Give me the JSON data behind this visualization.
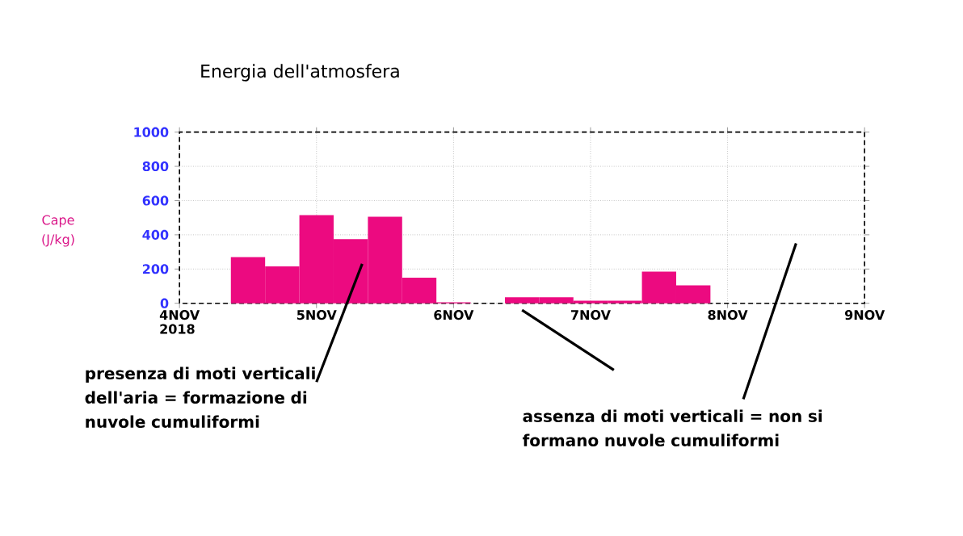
{
  "chart_data": {
    "type": "histogram",
    "title": "Energia dell'atmosfera",
    "ylabel": "Cape (J/kg)",
    "bins": [
      "2018-11-04T09:00",
      "2018-11-04T15:00",
      "2018-11-04T21:00",
      "2018-11-05T03:00",
      "2018-11-05T09:00",
      "2018-11-05T15:00",
      "2018-11-05T21:00",
      "2018-11-06T03:00",
      "2018-11-06T09:00",
      "2018-11-06T15:00",
      "2018-11-06T21:00",
      "2018-11-07T03:00",
      "2018-11-07T09:00",
      "2018-11-07T15:00",
      "2018-11-07T21:00"
    ],
    "values": [
      270,
      215,
      515,
      375,
      505,
      150,
      5,
      0,
      35,
      35,
      15,
      15,
      185,
      105
    ],
    "color": "#ec0a80",
    "xlim": [
      "2018-11-04",
      "2018-11-09"
    ],
    "ylim": [
      0,
      1000
    ],
    "xticks": [
      {
        "value": "2018-11-04",
        "label": "4NOV"
      },
      {
        "value": "2018-11-05",
        "label": "5NOV"
      },
      {
        "value": "2018-11-06",
        "label": "6NOV"
      },
      {
        "value": "2018-11-07",
        "label": "7NOV"
      },
      {
        "value": "2018-11-08",
        "label": "8NOV"
      },
      {
        "value": "2018-11-09",
        "label": "9NOV"
      }
    ],
    "yticks": [
      0,
      200,
      400,
      600,
      800,
      1000
    ],
    "grid": true,
    "annotations": [
      "2018",
      {
        "text": "presenza di moti verticali dell'aria = formazione di nuvole cumuliformi",
        "x": "2018-11-05T08:00",
        "y": 230
      },
      "assenza di moti verticali = non si formano nuvole cumuliformi"
    ]
  }
}
